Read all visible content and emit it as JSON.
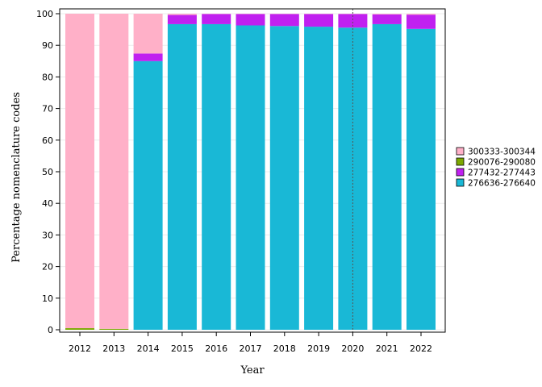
{
  "chart_data": {
    "type": "bar",
    "stacked": true,
    "title": "",
    "xlabel": "Year",
    "ylabel": "Percentage nomenclature codes",
    "ylim": [
      0,
      100
    ],
    "yticks": [
      0,
      10,
      20,
      30,
      40,
      50,
      60,
      70,
      80,
      90,
      100
    ],
    "grid": true,
    "legend_position": "right",
    "reference_line": {
      "x": "2020",
      "style": "dotted"
    },
    "categories": [
      "2012",
      "2013",
      "2014",
      "2015",
      "2016",
      "2017",
      "2018",
      "2019",
      "2020",
      "2021",
      "2022"
    ],
    "series": [
      {
        "name": "276636-276640",
        "color": "#19b8d6",
        "values": [
          0,
          0,
          85,
          96.7,
          96.7,
          96.3,
          96.1,
          95.9,
          95.6,
          96.7,
          95.2
        ]
      },
      {
        "name": "277432-277443",
        "color": "#c020f0",
        "values": [
          0,
          0,
          2.4,
          2.9,
          3.2,
          3.6,
          3.8,
          4.0,
          4.3,
          3.1,
          4.5
        ]
      },
      {
        "name": "290076-290080",
        "color": "#7ca800",
        "values": [
          0.5,
          0.3,
          0,
          0,
          0,
          0,
          0,
          0,
          0,
          0,
          0
        ]
      },
      {
        "name": "300333-300344",
        "color": "#ffb0c8",
        "values": [
          99.5,
          99.7,
          12.6,
          0.4,
          0.1,
          0.1,
          0.1,
          0.1,
          0.1,
          0.2,
          0.3
        ]
      }
    ],
    "legend_order": [
      "300333-300344",
      "290076-290080",
      "277432-277443",
      "276636-276640"
    ]
  }
}
